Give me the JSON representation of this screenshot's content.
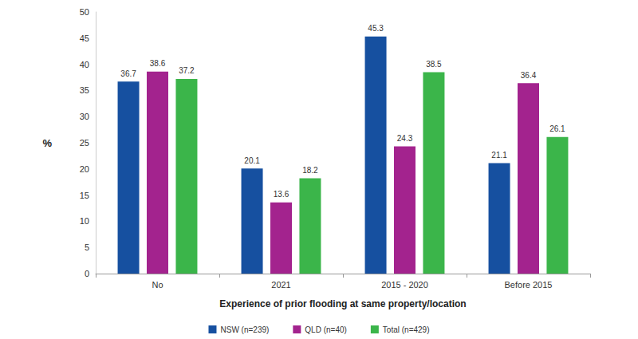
{
  "chart_data": {
    "type": "bar",
    "x_label": "Experience of prior flooding at same property/location",
    "y_label": "%",
    "categories": [
      "No",
      "2021",
      "2015 - 2020",
      "Before 2015"
    ],
    "series": [
      {
        "name": "NSW (n=239)",
        "color": "#1650a0",
        "values": [
          36.7,
          20.1,
          45.3,
          21.1
        ]
      },
      {
        "name": "QLD (n=40)",
        "color": "#a3238e",
        "values": [
          38.6,
          13.6,
          24.3,
          36.4
        ]
      },
      {
        "name": "Total (n=429)",
        "color": "#3bb54a",
        "values": [
          37.2,
          18.2,
          38.5,
          26.1
        ]
      }
    ],
    "ylim": [
      0,
      50
    ],
    "yticks": [
      0,
      5,
      10,
      15,
      20,
      25,
      30,
      35,
      40,
      45,
      50
    ],
    "grid": false,
    "legend": "bottom",
    "data_labels": true
  }
}
